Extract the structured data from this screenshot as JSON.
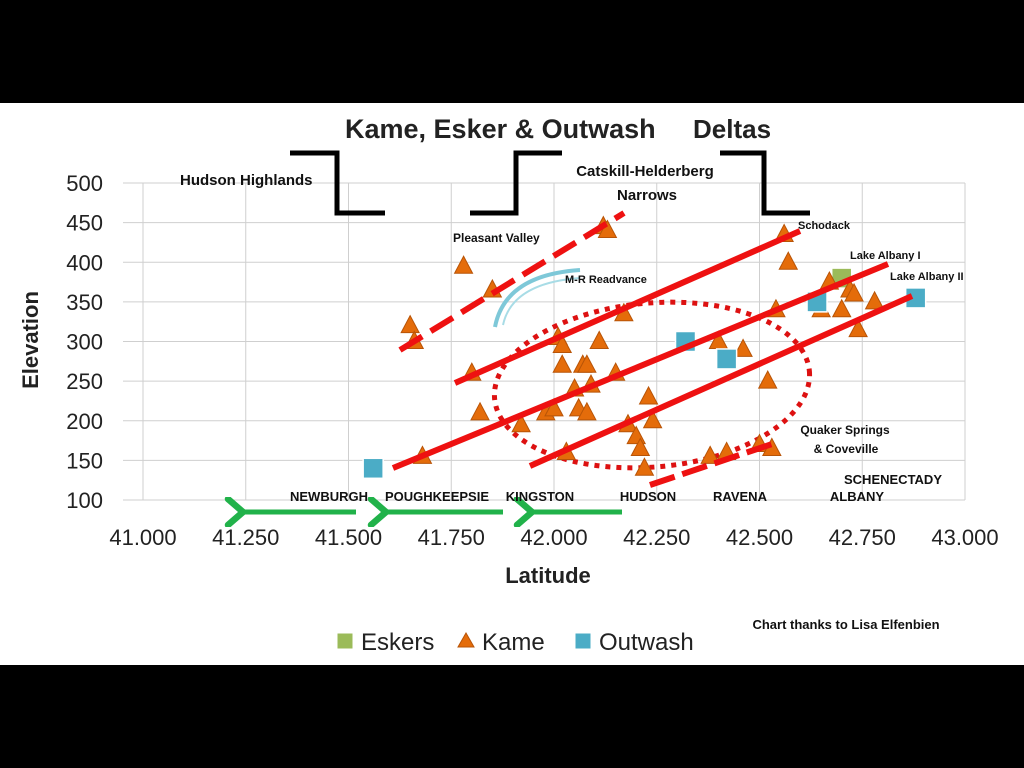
{
  "chart_data": {
    "type": "scatter",
    "title": "Kame, Esker & Outwash",
    "title_suffix": "Deltas",
    "xlabel": "Latitude",
    "ylabel": "Elevation",
    "xlim": [
      41.0,
      43.0
    ],
    "ylim": [
      100,
      500
    ],
    "x_ticks": [
      "41.000",
      "41.250",
      "41.500",
      "41.750",
      "42.000",
      "42.250",
      "42.500",
      "42.750",
      "43.000"
    ],
    "y_ticks": [
      "100",
      "150",
      "200",
      "250",
      "300",
      "350",
      "400",
      "450",
      "500"
    ],
    "grid": true,
    "legend_position": "bottom",
    "series": [
      {
        "name": "Eskers",
        "marker": "square",
        "color": "#9bbb59",
        "points": [
          [
            42.7,
            380
          ]
        ]
      },
      {
        "name": "Kame",
        "marker": "triangle",
        "color": "#e46c0a",
        "points": [
          [
            41.65,
            320
          ],
          [
            41.66,
            300
          ],
          [
            41.68,
            155
          ],
          [
            41.78,
            395
          ],
          [
            41.8,
            260
          ],
          [
            41.82,
            210
          ],
          [
            41.85,
            365
          ],
          [
            41.92,
            195
          ],
          [
            41.98,
            210
          ],
          [
            42.0,
            215
          ],
          [
            42.01,
            305
          ],
          [
            42.02,
            295
          ],
          [
            42.02,
            270
          ],
          [
            42.03,
            160
          ],
          [
            42.05,
            240
          ],
          [
            42.06,
            215
          ],
          [
            42.07,
            270
          ],
          [
            42.08,
            210
          ],
          [
            42.08,
            270
          ],
          [
            42.09,
            245
          ],
          [
            42.11,
            300
          ],
          [
            42.12,
            445
          ],
          [
            42.13,
            440
          ],
          [
            42.15,
            260
          ],
          [
            42.17,
            335
          ],
          [
            42.18,
            195
          ],
          [
            42.2,
            180
          ],
          [
            42.21,
            165
          ],
          [
            42.22,
            140
          ],
          [
            42.23,
            230
          ],
          [
            42.24,
            200
          ],
          [
            42.38,
            155
          ],
          [
            42.4,
            300
          ],
          [
            42.42,
            160
          ],
          [
            42.46,
            290
          ],
          [
            42.5,
            170
          ],
          [
            42.52,
            250
          ],
          [
            42.53,
            165
          ],
          [
            42.54,
            340
          ],
          [
            42.56,
            435
          ],
          [
            42.57,
            400
          ],
          [
            42.65,
            340
          ],
          [
            42.67,
            375
          ],
          [
            42.7,
            340
          ],
          [
            42.72,
            365
          ],
          [
            42.73,
            360
          ],
          [
            42.74,
            315
          ],
          [
            42.78,
            350
          ]
        ]
      },
      {
        "name": "Outwash",
        "marker": "square",
        "color": "#4bacc6",
        "points": [
          [
            41.56,
            140
          ],
          [
            42.32,
            300
          ],
          [
            42.42,
            278
          ],
          [
            42.64,
            350
          ],
          [
            42.88,
            355
          ]
        ]
      }
    ],
    "legend": [
      "Eskers",
      "Kame",
      "Outwash"
    ]
  },
  "annotations": {
    "hudson_highlands": "Hudson Highlands",
    "catskill_1": "Catskill-Helderberg",
    "catskill_2": "Narrows",
    "pleasant_valley": "Pleasant Valley",
    "mr_readvance": "M-R Readvance",
    "schodack": "Schodack",
    "lake_albany_1": "Lake Albany I",
    "lake_albany_2": "Lake Albany II",
    "quaker_1": "Quaker Springs",
    "quaker_2": "& Coveville",
    "schenectady": "SCHENECTADY",
    "albany": "ALBANY",
    "newburgh": "NEWBURGH",
    "poughkeepsie": "POUGHKEEPSIE",
    "kingston": "KINGSTON",
    "hudson": "HUDSON",
    "ravena": "RAVENA",
    "credit": "Chart thanks to Lisa Elfenbien"
  },
  "colors": {
    "shoreline": "#ee1111",
    "arrow": "#21b24a",
    "readvance": "#7ec8d8",
    "kame": "#e46c0a",
    "outwash": "#4bacc6",
    "esker": "#9bbb59",
    "grid": "#cfcfcf"
  }
}
